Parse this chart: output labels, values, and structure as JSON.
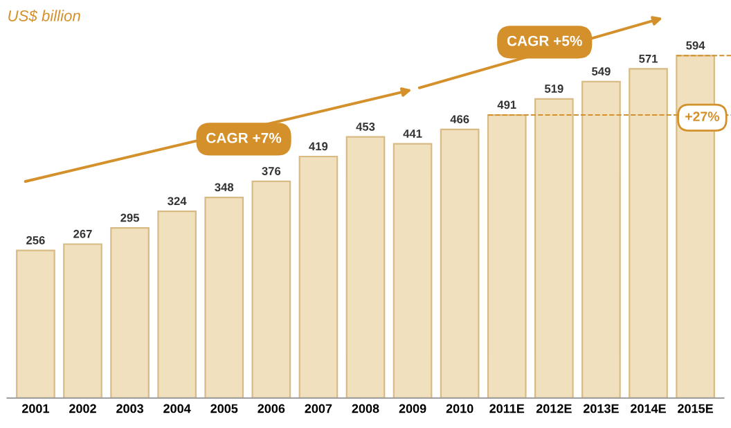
{
  "chart_data": {
    "type": "bar",
    "ylabel": "US$ billion",
    "categories": [
      "2001",
      "2002",
      "2003",
      "2004",
      "2005",
      "2006",
      "2007",
      "2008",
      "2009",
      "2010",
      "2011E",
      "2012E",
      "2013E",
      "2014E",
      "2015E"
    ],
    "values": [
      256,
      267,
      295,
      324,
      348,
      376,
      419,
      453,
      441,
      466,
      491,
      519,
      549,
      571,
      594
    ],
    "color": "#f1e0bd",
    "data_labels": true,
    "annotations": [
      "CAGR +7%",
      "CAGR +5%",
      "+27%"
    ],
    "grid": false,
    "legend": false
  }
}
